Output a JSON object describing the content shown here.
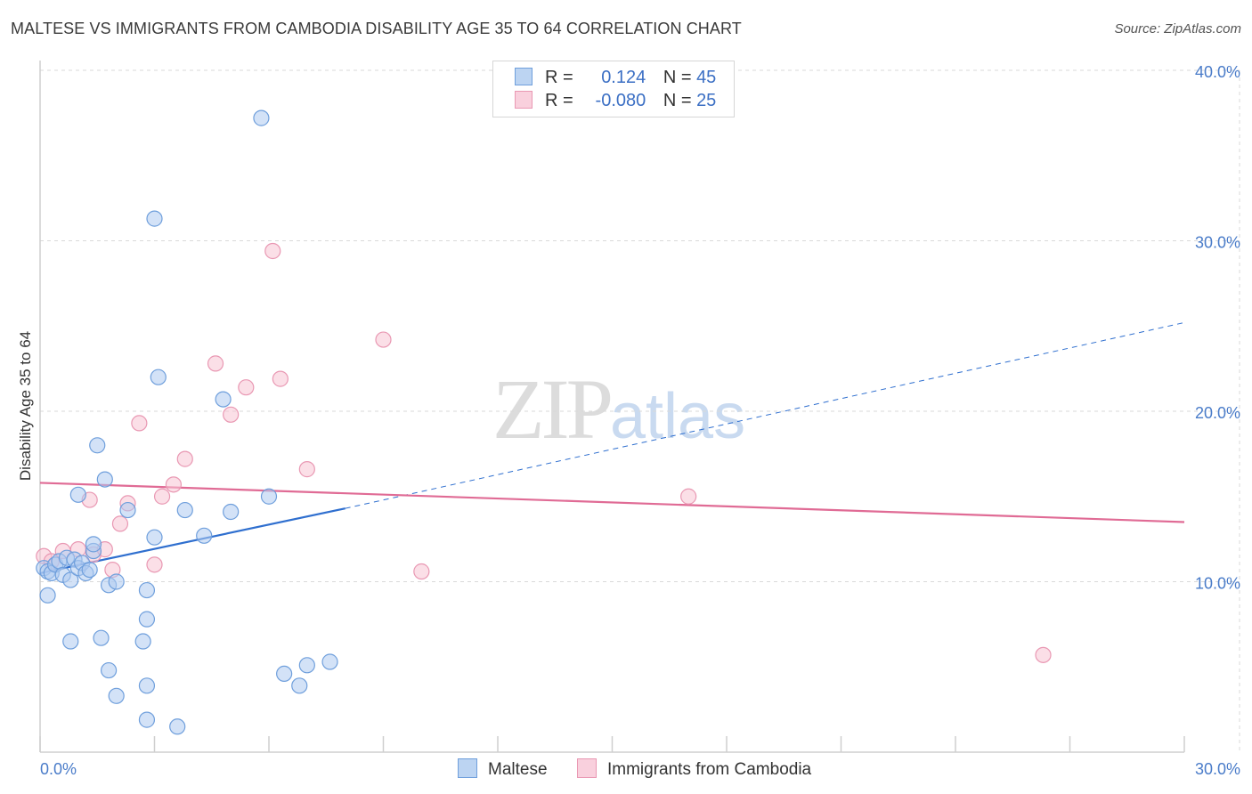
{
  "title": "MALTESE VS IMMIGRANTS FROM CAMBODIA DISABILITY AGE 35 TO 64 CORRELATION CHART",
  "source": "Source: ZipAtlas.com",
  "watermark": {
    "zip": "ZIP",
    "atlas": "atlas"
  },
  "legend": {
    "maltese": {
      "r_label": "R =",
      "r_value": "0.124",
      "n_label": "N =",
      "n_value": "45"
    },
    "cambodia": {
      "r_label": "R =",
      "r_value": "-0.080",
      "n_label": "N =",
      "n_value": "25"
    }
  },
  "bottom_legend": {
    "maltese": "Maltese",
    "cambodia": "Immigrants from Cambodia"
  },
  "colors": {
    "maltese_fill": "#aecbf0",
    "maltese_stroke": "#6f9fdc",
    "maltese_line": "#2f6fcf",
    "cambodia_fill": "#f7c4d4",
    "cambodia_stroke": "#e998b3",
    "cambodia_line": "#e06b95",
    "axis_text": "#4a7cc9",
    "grid": "#d9d9d9"
  },
  "chart_data": {
    "type": "scatter",
    "title": "MALTESE VS IMMIGRANTS FROM CAMBODIA DISABILITY AGE 35 TO 64 CORRELATION CHART",
    "xlabel": "",
    "ylabel": "Disability Age 35 to 64",
    "xlim": [
      0,
      30
    ],
    "ylim": [
      0,
      40
    ],
    "x_tick_labels": [
      "0.0%",
      "30.0%"
    ],
    "y_ticks": [
      10,
      20,
      30,
      40
    ],
    "y_tick_labels": [
      "10.0%",
      "20.0%",
      "30.0%",
      "40.0%"
    ],
    "series": [
      {
        "name": "Maltese",
        "points": [
          [
            0.1,
            10.8
          ],
          [
            0.2,
            10.6
          ],
          [
            0.3,
            10.5
          ],
          [
            0.4,
            11.0
          ],
          [
            0.5,
            11.2
          ],
          [
            0.6,
            10.4
          ],
          [
            0.7,
            11.4
          ],
          [
            0.8,
            10.1
          ],
          [
            0.9,
            11.3
          ],
          [
            1.0,
            10.8
          ],
          [
            1.1,
            11.1
          ],
          [
            1.2,
            10.5
          ],
          [
            1.3,
            10.7
          ],
          [
            1.4,
            11.8
          ],
          [
            1.4,
            12.2
          ],
          [
            0.2,
            9.2
          ],
          [
            1.0,
            15.1
          ],
          [
            1.7,
            16.0
          ],
          [
            1.5,
            18.0
          ],
          [
            1.8,
            9.8
          ],
          [
            2.0,
            10.0
          ],
          [
            2.3,
            14.2
          ],
          [
            2.8,
            9.5
          ],
          [
            2.8,
            7.8
          ],
          [
            2.7,
            6.5
          ],
          [
            1.6,
            6.7
          ],
          [
            0.8,
            6.5
          ],
          [
            2.8,
            3.9
          ],
          [
            2.0,
            3.3
          ],
          [
            2.8,
            1.9
          ],
          [
            3.6,
            1.5
          ],
          [
            3.0,
            12.6
          ],
          [
            3.8,
            14.2
          ],
          [
            3.1,
            22.0
          ],
          [
            3.0,
            31.3
          ],
          [
            4.3,
            12.7
          ],
          [
            5.0,
            14.1
          ],
          [
            4.8,
            20.7
          ],
          [
            6.0,
            15.0
          ],
          [
            6.4,
            4.6
          ],
          [
            6.8,
            3.9
          ],
          [
            7.0,
            5.1
          ],
          [
            7.6,
            5.3
          ],
          [
            5.8,
            37.2
          ],
          [
            1.8,
            4.8
          ]
        ]
      },
      {
        "name": "Immigrants from Cambodia",
        "points": [
          [
            0.1,
            11.5
          ],
          [
            0.3,
            11.2
          ],
          [
            0.6,
            11.8
          ],
          [
            1.0,
            11.9
          ],
          [
            1.4,
            11.6
          ],
          [
            1.7,
            11.9
          ],
          [
            1.3,
            14.8
          ],
          [
            1.9,
            10.7
          ],
          [
            2.1,
            13.4
          ],
          [
            2.3,
            14.6
          ],
          [
            2.6,
            19.3
          ],
          [
            3.0,
            11.0
          ],
          [
            3.2,
            15.0
          ],
          [
            3.5,
            15.7
          ],
          [
            3.8,
            17.2
          ],
          [
            4.6,
            22.8
          ],
          [
            5.0,
            19.8
          ],
          [
            5.4,
            21.4
          ],
          [
            6.1,
            29.4
          ],
          [
            6.3,
            21.9
          ],
          [
            7.0,
            16.6
          ],
          [
            9.0,
            24.2
          ],
          [
            10.0,
            10.6
          ],
          [
            17.0,
            15.0
          ],
          [
            26.3,
            5.7
          ]
        ]
      }
    ],
    "trend_lines": [
      {
        "series": "Maltese",
        "solid": [
          [
            0.0,
            10.5
          ],
          [
            8.0,
            14.3
          ]
        ],
        "dashed": [
          [
            8.0,
            14.3
          ],
          [
            30.0,
            25.2
          ]
        ]
      },
      {
        "series": "Immigrants from Cambodia",
        "solid": [
          [
            0.0,
            15.8
          ],
          [
            30.0,
            13.5
          ]
        ]
      }
    ]
  }
}
